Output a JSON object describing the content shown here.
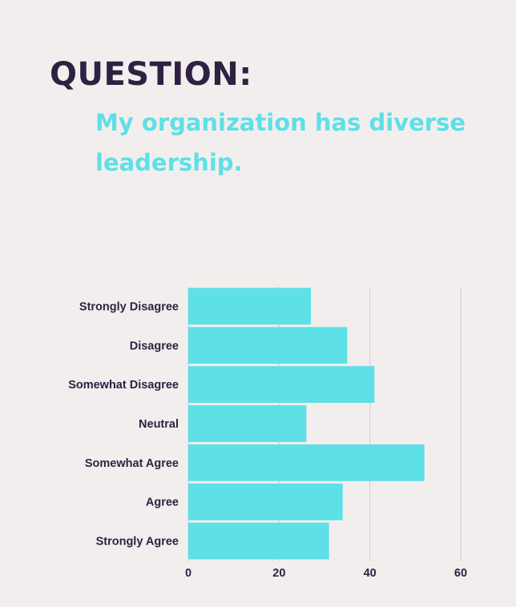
{
  "heading": "QUESTION:",
  "question": "My organization has diverse leadership.",
  "colors": {
    "background": "#f3eeee",
    "heading": "#2e2142",
    "accent": "#5de0e6",
    "grid": "#d0cbcb"
  },
  "chart_data": {
    "type": "bar",
    "orientation": "horizontal",
    "categories": [
      "Strongly Disagree",
      "Disagree",
      "Somewhat Disagree",
      "Neutral",
      "Somewhat Agree",
      "Agree",
      "Strongly Agree"
    ],
    "values": [
      27,
      35,
      41,
      26,
      52,
      34,
      31
    ],
    "xlim": [
      0,
      60
    ],
    "xticks": [
      0,
      20,
      40,
      60
    ],
    "grid": true,
    "legend": "none"
  }
}
